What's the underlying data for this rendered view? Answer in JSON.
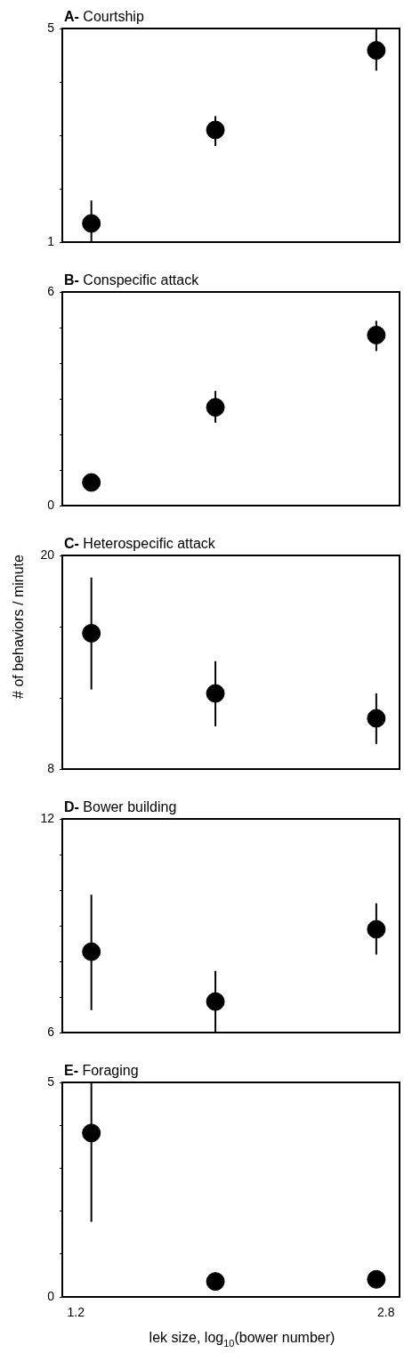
{
  "chart_data": [
    {
      "type": "scatter",
      "title": "A- Courtship",
      "x": [
        1.28,
        1.92,
        2.75
      ],
      "values": [
        1.35,
        3.1,
        4.59
      ],
      "errors": [
        [
          1,
          1.78
        ],
        [
          2.8,
          3.36
        ],
        [
          4.21,
          5
        ]
      ],
      "color": "#000000",
      "marker": "circle",
      "grid": false,
      "xlim": [
        1.13,
        2.87
      ],
      "ylim": [
        1,
        5
      ],
      "yticks": [
        1,
        {
          "value": 2,
          "label": null
        },
        {
          "value": 3,
          "label": null
        },
        {
          "value": 4,
          "label": null
        },
        5
      ],
      "tick_labels": "y"
    },
    {
      "type": "scatter",
      "title": "B- Conspecific attack",
      "x": [
        1.28,
        1.92,
        2.75
      ],
      "values": [
        0.65,
        2.76,
        4.79
      ],
      "errors": [
        null,
        [
          2.33,
          3.22
        ],
        [
          4.34,
          5.19
        ]
      ],
      "color": "#000000",
      "marker": "circle",
      "grid": false,
      "xlim": [
        1.13,
        2.87
      ],
      "ylim": [
        0,
        6
      ],
      "yticks": [
        0,
        {
          "value": 1,
          "label": null
        },
        {
          "value": 2,
          "label": null
        },
        {
          "value": 3,
          "label": null
        },
        {
          "value": 4,
          "label": null
        },
        {
          "value": 5,
          "label": null
        },
        6
      ],
      "tick_labels": "y"
    },
    {
      "type": "scatter",
      "title": "C- Heterospecific attack",
      "ylabel": "# of behaviors / minute",
      "x": [
        1.28,
        1.92,
        2.75
      ],
      "values": [
        15.63,
        12.25,
        10.85
      ],
      "errors": [
        [
          12.47,
          18.76
        ],
        [
          10.4,
          14.06
        ],
        [
          9.41,
          12.25
        ]
      ],
      "color": "#000000",
      "marker": "circle",
      "grid": false,
      "xlim": [
        1.13,
        2.87
      ],
      "ylim": [
        8,
        20
      ],
      "yticks": [
        8,
        {
          "value": 12,
          "label": null
        },
        {
          "value": 16,
          "label": null
        },
        20
      ],
      "tick_labels": "y"
    },
    {
      "type": "scatter",
      "title": "D- Bower building",
      "x": [
        1.28,
        1.92,
        2.75
      ],
      "values": [
        8.27,
        6.87,
        8.9
      ],
      "errors": [
        [
          6.63,
          9.87
        ],
        [
          6,
          7.73
        ],
        [
          8.19,
          9.63
        ]
      ],
      "color": "#000000",
      "marker": "circle",
      "grid": false,
      "xlim": [
        1.13,
        2.87
      ],
      "ylim": [
        6,
        12
      ],
      "yticks": [
        6,
        {
          "value": 7,
          "label": null
        },
        {
          "value": 8,
          "label": null
        },
        {
          "value": 9,
          "label": null
        },
        {
          "value": 10,
          "label": null
        },
        {
          "value": 11,
          "label": null
        },
        12
      ],
      "tick_labels": "y"
    },
    {
      "type": "scatter",
      "title": "E- Foraging",
      "xlabel": "lek size, log$_{10}$(bower number)",
      "x": [
        1.28,
        1.92,
        2.75
      ],
      "values": [
        3.82,
        0.36,
        0.41
      ],
      "errors": [
        [
          1.75,
          5
        ],
        null,
        null
      ],
      "color": "#000000",
      "marker": "circle",
      "grid": false,
      "xlim": [
        1.13,
        2.87
      ],
      "xticks": [
        1.2,
        2.8
      ],
      "ylim": [
        0,
        5
      ],
      "yticks": [
        0,
        {
          "value": 1,
          "label": null
        },
        {
          "value": 2,
          "label": null
        },
        {
          "value": 3,
          "label": null
        },
        {
          "value": 4,
          "label": null
        },
        5
      ]
    }
  ]
}
